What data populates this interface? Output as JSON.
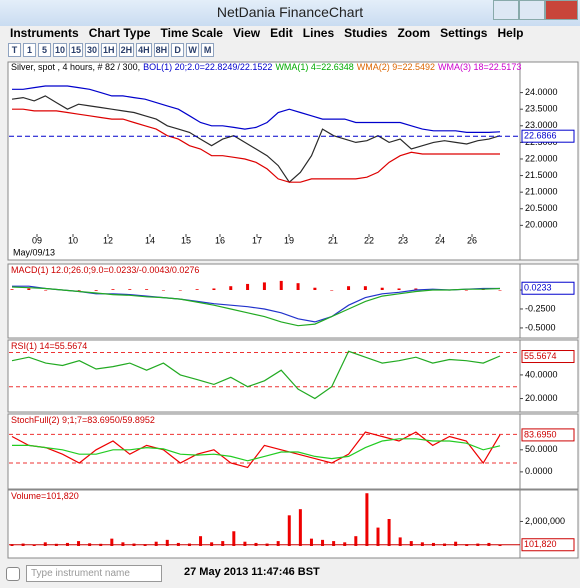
{
  "window": {
    "title": "NetDania FinanceChart"
  },
  "menu": [
    "Instruments",
    "Chart Type",
    "Time Scale",
    "View",
    "Edit",
    "Lines",
    "Studies",
    "Zoom",
    "Settings",
    "Help"
  ],
  "toolbar": [
    "T",
    "1",
    "5",
    "10",
    "15",
    "30",
    "1H",
    "2H",
    "4H",
    "8H",
    "D",
    "W",
    "M"
  ],
  "panels": [
    {
      "legend": [
        {
          "text": "Silver, spot , 4 hours, # 82 / 300,",
          "color": "#000000"
        },
        {
          "text": "BOL(1) 20;2.0=22.8249/22.1522",
          "color": "#0000cc"
        },
        {
          "text": "WMA(1) 4=22.6348",
          "color": "#00aa00"
        },
        {
          "text": "WMA(2) 9=22.5492",
          "color": "#dd6600"
        },
        {
          "text": "WMA(3) 18=22.5173",
          "color": "#cc00cc"
        }
      ],
      "ylim": [
        19.8,
        24.5
      ],
      "yticks": [
        {
          "value": 24,
          "label": "24.0000"
        },
        {
          "value": 23.5,
          "label": "23.5000"
        },
        {
          "value": 23,
          "label": "23.0000"
        },
        {
          "value": 22.5,
          "label": "22.5000"
        },
        {
          "value": 22,
          "label": "22.0000"
        },
        {
          "value": 21.5,
          "label": "21.5000"
        },
        {
          "value": 21,
          "label": "21.0000"
        },
        {
          "value": 20.5,
          "label": "20.5000"
        },
        {
          "value": 20,
          "label": "20.0000"
        }
      ],
      "x_labels": [
        "09",
        "10",
        "12",
        "14",
        "15",
        "16",
        "17",
        "19",
        "21",
        "22",
        "23",
        "24",
        "26"
      ],
      "x_date": "May/09/13",
      "series": [
        {
          "style": "line",
          "color": "#2a2a2a",
          "values": [
            23.8,
            23.85,
            23.75,
            23.9,
            23.7,
            23.5,
            23.65,
            23.6,
            23.55,
            23.5,
            23.45,
            23.4,
            23.3,
            23.2,
            23.0,
            22.9,
            22.8,
            22.6,
            22.4,
            22.6,
            22.7,
            22.5,
            22.3,
            22.1,
            21.8,
            21.3,
            21.6,
            22.1,
            22.9,
            22.7,
            22.6,
            22.5,
            22.55,
            22.7,
            22.5,
            22.6,
            22.3,
            22.4,
            22.5,
            22.55,
            22.5,
            22.45,
            22.55,
            22.6,
            22.7
          ]
        },
        {
          "style": "line",
          "color": "#0000cc",
          "values": [
            24.1,
            24.1,
            24.15,
            24.2,
            24.2,
            24.2,
            24.15,
            24.1,
            24.0,
            23.9,
            23.9,
            23.85,
            23.8,
            23.7,
            23.6,
            23.5,
            23.3,
            23.1,
            23.0,
            23.0,
            22.95,
            22.9,
            22.95,
            23.1,
            23.4,
            23.5,
            23.4,
            23.3,
            23.2,
            23.2,
            23.2,
            23.1,
            23.1,
            23.1,
            23.1,
            23.1,
            23.0,
            22.9,
            22.85,
            22.85,
            22.85,
            22.8,
            22.8,
            22.8,
            22.82
          ]
        },
        {
          "style": "line",
          "color": "#dd0000",
          "values": [
            23.5,
            23.5,
            23.45,
            23.45,
            23.45,
            23.4,
            23.35,
            23.3,
            23.25,
            23.2,
            23.2,
            23.1,
            23.0,
            22.9,
            22.7,
            22.6,
            22.4,
            22.3,
            22.1,
            22.1,
            22.05,
            22.0,
            21.9,
            21.7,
            21.4,
            21.3,
            21.3,
            21.4,
            21.4,
            21.4,
            21.4,
            21.4,
            21.45,
            21.6,
            21.9,
            22.1,
            22.2,
            22.15,
            22.15,
            22.15,
            22.15,
            22.15,
            22.15,
            22.15,
            22.15
          ]
        }
      ],
      "current": {
        "value": 22.6866,
        "label": "22.6866"
      },
      "current_color": "#0000cc",
      "current_line": "dashed"
    },
    {
      "legend": [
        {
          "text": "MACD(1) 12.0;26.0;9.0=0.0233/-0.0043/0.0276",
          "color": "#cc0000"
        }
      ],
      "ylim": [
        -0.58,
        0.29
      ],
      "yticks": [
        {
          "value": 0,
          "label": "0.0000"
        },
        {
          "value": -0.25,
          "label": "-0.2500"
        },
        {
          "value": -0.5,
          "label": "-0.5000"
        }
      ],
      "series": [
        {
          "style": "bar",
          "color": "#ee0000",
          "values": [
            0.01,
            0.02,
            0,
            0,
            0,
            -0.01,
            0.01,
            0.01,
            0.01,
            0,
            0,
            0.01,
            0.02,
            0.05,
            0.08,
            0.1,
            0.12,
            0.09,
            0.03,
            0,
            0.05,
            0.05,
            0.03,
            0.02,
            0.02,
            0.01,
            0,
            0,
            0.01,
            0
          ]
        },
        {
          "style": "line",
          "color": "#2233cc",
          "values": [
            0.05,
            0.05,
            0.02,
            0,
            -0.02,
            -0.05,
            -0.05,
            -0.06,
            -0.08,
            -0.1,
            -0.12,
            -0.15,
            -0.18,
            -0.2,
            -0.22,
            -0.25,
            -0.3,
            -0.38,
            -0.42,
            -0.35,
            -0.2,
            -0.1,
            -0.05,
            -0.03,
            0,
            0.01,
            0,
            0.01,
            0.02,
            0.02
          ]
        },
        {
          "style": "line",
          "color": "#22aa22",
          "values": [
            0.04,
            0.03,
            0.02,
            0,
            -0.02,
            -0.04,
            -0.06,
            -0.07,
            -0.09,
            -0.1,
            -0.12,
            -0.16,
            -0.2,
            -0.25,
            -0.3,
            -0.35,
            -0.42,
            -0.47,
            -0.45,
            -0.35,
            -0.25,
            -0.15,
            -0.08,
            -0.05,
            -0.02,
            0,
            0,
            0.01,
            0.01,
            0.02
          ]
        }
      ],
      "current": {
        "value": 0.0233,
        "label": "0.0233"
      },
      "current_color": "#0000cc"
    },
    {
      "legend": [
        {
          "text": "RSI(1) 14=55.5674",
          "color": "#cc0000"
        }
      ],
      "ylim": [
        12,
        67
      ],
      "yticks": [
        {
          "value": 40,
          "label": "40.0000"
        },
        {
          "value": 20,
          "label": "20.0000"
        }
      ],
      "levels": [
        59,
        30
      ],
      "series": [
        {
          "style": "line",
          "color": "#22aa22",
          "values": [
            52,
            55,
            50,
            48,
            52,
            45,
            47,
            50,
            44,
            50,
            40,
            36,
            32,
            38,
            30,
            35,
            44,
            28,
            20,
            30,
            60,
            55,
            50,
            52,
            55,
            50,
            53,
            52,
            50,
            56
          ]
        }
      ],
      "current": {
        "value": 55.5674,
        "label": "55.5674"
      },
      "current_color": "#cc0000"
    },
    {
      "legend": [
        {
          "text": "StochFull(2) 9;1;7=83.6950/59.8952",
          "color": "#cc0000"
        }
      ],
      "ylim": [
        -32,
        122
      ],
      "yticks": [
        {
          "value": 50,
          "label": "50.0000"
        },
        {
          "value": 0,
          "label": "0.0000"
        }
      ],
      "levels": [
        85,
        20
      ],
      "series": [
        {
          "style": "line",
          "color": "#ee0000",
          "values": [
            80,
            60,
            55,
            40,
            20,
            50,
            70,
            40,
            60,
            50,
            20,
            40,
            50,
            20,
            10,
            60,
            50,
            40,
            30,
            20,
            40,
            90,
            80,
            70,
            90,
            60,
            80,
            70,
            20,
            84
          ]
        },
        {
          "style": "line",
          "color": "#22cc22",
          "values": [
            60,
            60,
            55,
            50,
            40,
            40,
            50,
            50,
            55,
            52,
            40,
            38,
            40,
            35,
            25,
            35,
            45,
            45,
            35,
            30,
            35,
            55,
            70,
            75,
            75,
            70,
            70,
            65,
            50,
            59
          ]
        }
      ],
      "current": {
        "value": 83.695,
        "label": "83.6950"
      },
      "current_color": "#cc0000"
    },
    {
      "legend": [
        {
          "text": "Volume=101,820",
          "color": "#cc0000"
        }
      ],
      "ylim": [
        0,
        4400000
      ],
      "yticks": [
        {
          "value": 2000000,
          "label": "2,000,000"
        }
      ],
      "series": [
        {
          "style": "bar",
          "color": "#ee0000",
          "values": [
            150000,
            200000,
            120000,
            300000,
            180000,
            250000,
            400000,
            220000,
            180000,
            600000,
            300000,
            200000,
            150000,
            350000,
            500000,
            250000,
            200000,
            800000,
            300000,
            400000,
            1200000,
            350000,
            250000,
            200000,
            400000,
            2500000,
            3000000,
            600000,
            500000,
            400000,
            300000,
            800000,
            4300000,
            1500000,
            2200000,
            700000,
            400000,
            300000,
            250000,
            200000,
            350000,
            150000,
            200000,
            250000,
            101820
          ]
        }
      ],
      "current": {
        "value": 101820,
        "label": "101,820"
      },
      "current_color": "#cc0000",
      "current_line": "solid"
    }
  ],
  "status": {
    "search_placeholder": "Type instrument name",
    "timestamp": "27 May 2013 11:47:46 BST"
  }
}
